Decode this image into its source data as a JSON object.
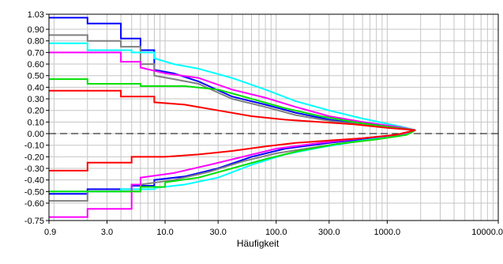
{
  "chart_data": {
    "type": "line",
    "xlabel": "Häufigkeit",
    "ylabel": "",
    "xscale": "log",
    "xlim": [
      0.9,
      10000
    ],
    "ylim": [
      -0.75,
      1.03
    ],
    "grid": true,
    "legend": "none",
    "zero_line": "dashed",
    "x_ticks": [
      {
        "value": 0.9,
        "label": "0.9"
      },
      {
        "value": 3,
        "label": "3.0"
      },
      {
        "value": 10,
        "label": "10.0"
      },
      {
        "value": 30,
        "label": "30.0"
      },
      {
        "value": 100,
        "label": "100.0"
      },
      {
        "value": 300,
        "label": "300.0"
      },
      {
        "value": 1000,
        "label": "1000.0"
      },
      {
        "value": 10000,
        "label": "10000.0"
      }
    ],
    "y_ticks": [
      {
        "value": 1.03,
        "label": "1.03"
      },
      {
        "value": 0.9,
        "label": "0.90"
      },
      {
        "value": 0.8,
        "label": "0.80"
      },
      {
        "value": 0.7,
        "label": "0.70"
      },
      {
        "value": 0.6,
        "label": "0.60"
      },
      {
        "value": 0.5,
        "label": "0.50"
      },
      {
        "value": 0.4,
        "label": "0.40"
      },
      {
        "value": 0.3,
        "label": "0.30"
      },
      {
        "value": 0.2,
        "label": "0.20"
      },
      {
        "value": 0.1,
        "label": "0.10"
      },
      {
        "value": 0.0,
        "label": "0.00"
      },
      {
        "value": -0.1,
        "label": "-0.10"
      },
      {
        "value": -0.2,
        "label": "-0.20"
      },
      {
        "value": -0.3,
        "label": "-0.30"
      },
      {
        "value": -0.4,
        "label": "-0.40"
      },
      {
        "value": -0.5,
        "label": "-0.50"
      },
      {
        "value": -0.6,
        "label": "-0.60"
      },
      {
        "value": -0.75,
        "label": "-0.75"
      }
    ],
    "series": [
      {
        "color": "#0000ff",
        "points": [
          [
            0.9,
            1.0
          ],
          [
            2,
            1.0
          ],
          [
            2,
            0.95
          ],
          [
            4,
            0.95
          ],
          [
            4,
            0.82
          ],
          [
            6,
            0.82
          ],
          [
            6,
            0.72
          ],
          [
            8,
            0.72
          ],
          [
            8,
            0.55
          ],
          [
            12,
            0.52
          ],
          [
            20,
            0.45
          ],
          [
            40,
            0.32
          ],
          [
            80,
            0.25
          ],
          [
            150,
            0.18
          ],
          [
            300,
            0.12
          ],
          [
            700,
            0.07
          ],
          [
            1400,
            0.04
          ],
          [
            1800,
            0.03
          ]
        ]
      },
      {
        "color": "#808080",
        "points": [
          [
            0.9,
            0.85
          ],
          [
            2,
            0.85
          ],
          [
            2,
            0.8
          ],
          [
            4,
            0.8
          ],
          [
            4,
            0.75
          ],
          [
            6,
            0.75
          ],
          [
            6,
            0.6
          ],
          [
            8,
            0.6
          ],
          [
            8,
            0.5
          ],
          [
            12,
            0.47
          ],
          [
            20,
            0.43
          ],
          [
            40,
            0.3
          ],
          [
            80,
            0.23
          ],
          [
            150,
            0.16
          ],
          [
            300,
            0.11
          ],
          [
            700,
            0.07
          ],
          [
            1400,
            0.04
          ],
          [
            1800,
            0.03
          ]
        ]
      },
      {
        "color": "#00ffff",
        "points": [
          [
            0.9,
            0.78
          ],
          [
            2,
            0.78
          ],
          [
            2,
            0.72
          ],
          [
            5,
            0.72
          ],
          [
            5,
            0.7
          ],
          [
            8,
            0.7
          ],
          [
            8,
            0.65
          ],
          [
            12,
            0.6
          ],
          [
            20,
            0.56
          ],
          [
            40,
            0.48
          ],
          [
            80,
            0.38
          ],
          [
            150,
            0.28
          ],
          [
            300,
            0.2
          ],
          [
            600,
            0.13
          ],
          [
            1200,
            0.07
          ],
          [
            1800,
            0.03
          ]
        ]
      },
      {
        "color": "#ff00ff",
        "points": [
          [
            0.9,
            0.7
          ],
          [
            4,
            0.7
          ],
          [
            4,
            0.62
          ],
          [
            6,
            0.62
          ],
          [
            6,
            0.57
          ],
          [
            10,
            0.52
          ],
          [
            20,
            0.48
          ],
          [
            40,
            0.38
          ],
          [
            80,
            0.31
          ],
          [
            150,
            0.23
          ],
          [
            300,
            0.15
          ],
          [
            600,
            0.1
          ],
          [
            1200,
            0.06
          ],
          [
            1800,
            0.03
          ]
        ]
      },
      {
        "color": "#00e000",
        "points": [
          [
            0.9,
            0.47
          ],
          [
            2,
            0.47
          ],
          [
            2,
            0.43
          ],
          [
            6,
            0.43
          ],
          [
            6,
            0.41
          ],
          [
            15,
            0.41
          ],
          [
            30,
            0.38
          ],
          [
            60,
            0.3
          ],
          [
            120,
            0.22
          ],
          [
            250,
            0.15
          ],
          [
            500,
            0.1
          ],
          [
            1000,
            0.06
          ],
          [
            1800,
            0.03
          ]
        ]
      },
      {
        "color": "#ff0000",
        "points": [
          [
            0.9,
            0.37
          ],
          [
            4,
            0.37
          ],
          [
            4,
            0.32
          ],
          [
            8,
            0.32
          ],
          [
            8,
            0.27
          ],
          [
            15,
            0.25
          ],
          [
            30,
            0.2
          ],
          [
            60,
            0.15
          ],
          [
            120,
            0.12
          ],
          [
            250,
            0.1
          ],
          [
            500,
            0.08
          ],
          [
            1000,
            0.05
          ],
          [
            1800,
            0.03
          ]
        ]
      },
      {
        "color": "#0000ff",
        "points": [
          [
            0.9,
            -0.52
          ],
          [
            2,
            -0.52
          ],
          [
            2,
            -0.48
          ],
          [
            5,
            -0.48
          ],
          [
            5,
            -0.45
          ],
          [
            8,
            -0.45
          ],
          [
            8,
            -0.4
          ],
          [
            15,
            -0.37
          ],
          [
            30,
            -0.3
          ],
          [
            60,
            -0.2
          ],
          [
            120,
            -0.13
          ],
          [
            300,
            -0.08
          ],
          [
            700,
            -0.04
          ],
          [
            1400,
            -0.01
          ],
          [
            1800,
            0.03
          ]
        ]
      },
      {
        "color": "#808080",
        "points": [
          [
            0.9,
            -0.58
          ],
          [
            2,
            -0.58
          ],
          [
            2,
            -0.5
          ],
          [
            6,
            -0.5
          ],
          [
            6,
            -0.44
          ],
          [
            12,
            -0.4
          ],
          [
            25,
            -0.33
          ],
          [
            50,
            -0.24
          ],
          [
            100,
            -0.17
          ],
          [
            250,
            -0.11
          ],
          [
            600,
            -0.06
          ],
          [
            1300,
            -0.02
          ],
          [
            1800,
            0.03
          ]
        ]
      },
      {
        "color": "#00ffff",
        "points": [
          [
            0.9,
            -0.5
          ],
          [
            4,
            -0.5
          ],
          [
            4,
            -0.48
          ],
          [
            8,
            -0.48
          ],
          [
            8,
            -0.47
          ],
          [
            15,
            -0.44
          ],
          [
            30,
            -0.38
          ],
          [
            60,
            -0.27
          ],
          [
            120,
            -0.18
          ],
          [
            250,
            -0.12
          ],
          [
            600,
            -0.06
          ],
          [
            1300,
            -0.02
          ],
          [
            1800,
            0.03
          ]
        ]
      },
      {
        "color": "#ff00ff",
        "points": [
          [
            0.9,
            -0.72
          ],
          [
            2,
            -0.72
          ],
          [
            2,
            -0.65
          ],
          [
            5,
            -0.65
          ],
          [
            5,
            -0.44
          ],
          [
            6,
            -0.44
          ],
          [
            6,
            -0.38
          ],
          [
            12,
            -0.34
          ],
          [
            25,
            -0.27
          ],
          [
            50,
            -0.2
          ],
          [
            100,
            -0.13
          ],
          [
            250,
            -0.08
          ],
          [
            600,
            -0.04
          ],
          [
            1300,
            -0.01
          ],
          [
            1800,
            0.03
          ]
        ]
      },
      {
        "color": "#00e000",
        "points": [
          [
            0.9,
            -0.5
          ],
          [
            6,
            -0.5
          ],
          [
            6,
            -0.46
          ],
          [
            10,
            -0.46
          ],
          [
            10,
            -0.42
          ],
          [
            20,
            -0.38
          ],
          [
            40,
            -0.3
          ],
          [
            80,
            -0.22
          ],
          [
            160,
            -0.15
          ],
          [
            350,
            -0.09
          ],
          [
            800,
            -0.05
          ],
          [
            1500,
            -0.01
          ],
          [
            1800,
            0.03
          ]
        ]
      },
      {
        "color": "#ff0000",
        "points": [
          [
            0.9,
            -0.32
          ],
          [
            2,
            -0.32
          ],
          [
            2,
            -0.25
          ],
          [
            5,
            -0.25
          ],
          [
            5,
            -0.2
          ],
          [
            10,
            -0.2
          ],
          [
            20,
            -0.18
          ],
          [
            40,
            -0.15
          ],
          [
            80,
            -0.11
          ],
          [
            150,
            -0.08
          ],
          [
            300,
            -0.06
          ],
          [
            600,
            -0.04
          ],
          [
            1200,
            -0.01
          ],
          [
            1800,
            0.03
          ]
        ]
      }
    ]
  }
}
